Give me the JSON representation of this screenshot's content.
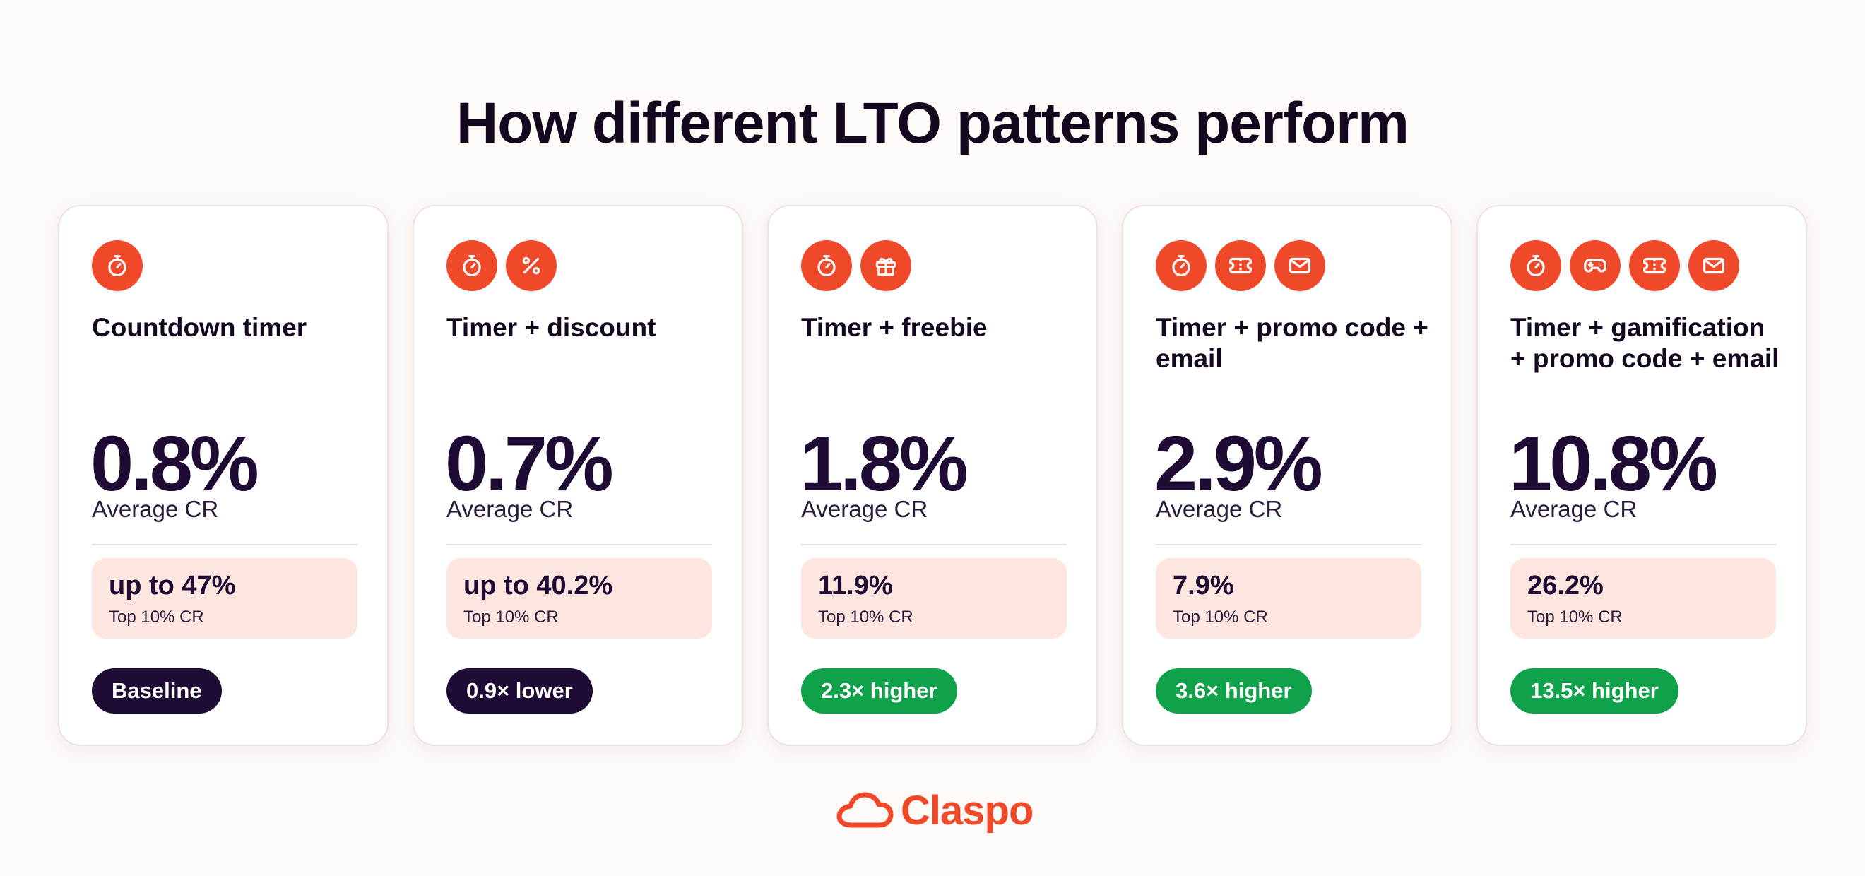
{
  "title": "How different LTO patterns perform",
  "colors": {
    "accent": "#f0492a",
    "dark": "#1e0c34",
    "green": "#0fa24a",
    "highlight_bg": "#fde6df"
  },
  "cards": [
    {
      "icons": [
        "timer-icon"
      ],
      "title": "Countdown timer",
      "avg_value": "0.8%",
      "avg_label": "Average CR",
      "top_value": "up to 47%",
      "top_label": "Top 10% CR",
      "badge": "Baseline",
      "badge_style": "dark"
    },
    {
      "icons": [
        "timer-icon",
        "percent-icon"
      ],
      "title": "Timer + discount",
      "avg_value": "0.7%",
      "avg_label": "Average CR",
      "top_value": "up to 40.2%",
      "top_label": "Top 10% CR",
      "badge": "0.9× lower",
      "badge_style": "dark"
    },
    {
      "icons": [
        "timer-icon",
        "gift-icon"
      ],
      "title": "Timer + freebie",
      "avg_value": "1.8%",
      "avg_label": "Average CR",
      "top_value": "11.9%",
      "top_label": "Top 10% CR",
      "badge": "2.3× higher",
      "badge_style": "green"
    },
    {
      "icons": [
        "timer-icon",
        "ticket-icon",
        "mail-icon"
      ],
      "title": "Timer + promo code + email",
      "avg_value": "2.9%",
      "avg_label": "Average CR",
      "top_value": "7.9%",
      "top_label": "Top 10% CR",
      "badge": "3.6× higher",
      "badge_style": "green"
    },
    {
      "icons": [
        "timer-icon",
        "gamepad-icon",
        "ticket-icon",
        "mail-icon"
      ],
      "title": "Timer + gamification + promo code + email",
      "avg_value": "10.8%",
      "avg_label": "Average CR",
      "top_value": "26.2%",
      "top_label": "Top 10% CR",
      "badge": "13.5× higher",
      "badge_style": "green"
    }
  ],
  "logo": {
    "text": "Claspo",
    "icon": "cloud-icon"
  }
}
